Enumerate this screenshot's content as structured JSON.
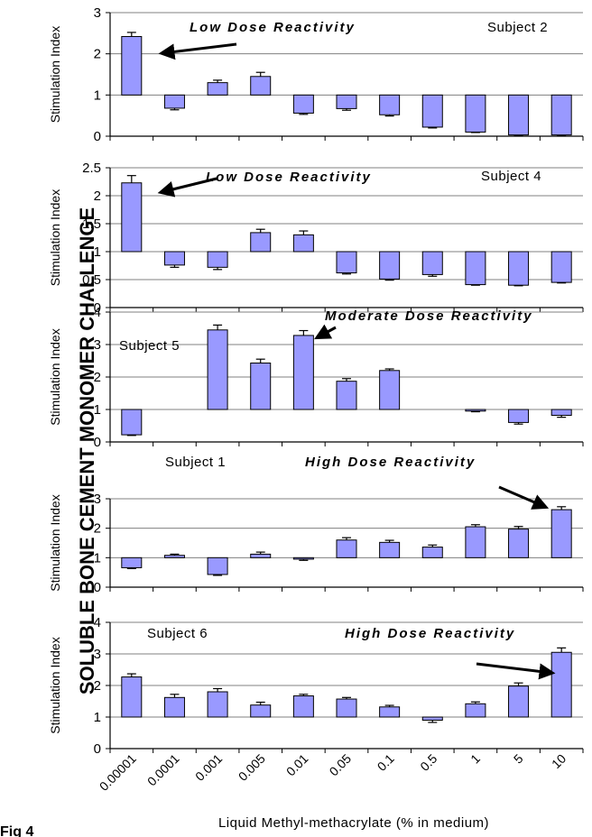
{
  "figure": {
    "title": "SOLUBLE BONE CEMENT MONOMER CHALLENGE",
    "xlabel": "Liquid Methyl-methacrylate (% in medium)",
    "fig_label": "Fig 4"
  },
  "chart_data": [
    {
      "type": "bar",
      "subject": "Subject 2",
      "annotation": "Low Dose Reactivity",
      "ylabel": "Stimulation Index",
      "baseline": 1,
      "ylim": [
        0,
        3
      ],
      "yticks": [
        "0",
        "1",
        "2",
        "3"
      ],
      "ytick_values": [
        0,
        1,
        2,
        3
      ],
      "values": [
        2.42,
        0.68,
        1.3,
        1.45,
        0.56,
        0.67,
        0.52,
        0.22,
        0.1,
        0.03,
        0.03
      ],
      "errors": [
        0.1,
        0.04,
        0.06,
        0.1,
        0.03,
        0.04,
        0.03,
        0.02,
        0.01,
        0.01,
        0.01
      ]
    },
    {
      "type": "bar",
      "subject": "Subject 4",
      "annotation": "Low Dose Reactivity",
      "ylabel": "Stimulation Index",
      "baseline": 1,
      "ylim": [
        0,
        2.5
      ],
      "yticks": [
        "0",
        "0.5",
        "1",
        "1.5",
        "2",
        "2.5"
      ],
      "ytick_values": [
        0,
        0.5,
        1,
        1.5,
        2,
        2.5
      ],
      "values": [
        2.23,
        0.76,
        0.72,
        1.34,
        1.3,
        0.62,
        0.51,
        0.59,
        0.41,
        0.4,
        0.45
      ],
      "errors": [
        0.13,
        0.04,
        0.04,
        0.06,
        0.07,
        0.02,
        0.02,
        0.03,
        0.01,
        0.01,
        0.01
      ]
    },
    {
      "type": "bar",
      "subject": "Subject 5",
      "annotation": "Moderate Dose Reactivity",
      "ylabel": "Stimulation Index",
      "baseline": 1,
      "ylim": [
        0,
        4
      ],
      "yticks": [
        "0",
        "1",
        "2",
        "3",
        "4"
      ],
      "ytick_values": [
        0,
        1,
        2,
        3,
        4
      ],
      "values": [
        0.22,
        null,
        3.45,
        2.43,
        3.28,
        1.87,
        2.2,
        null,
        0.95,
        0.6,
        0.82
      ],
      "errors": [
        0.02,
        0,
        0.15,
        0.12,
        0.15,
        0.08,
        0.05,
        0,
        0.02,
        0.05,
        0.06
      ]
    },
    {
      "type": "bar",
      "subject": "Subject 1",
      "annotation": "High Dose Reactivity",
      "ylabel": "Stimulation Index",
      "baseline": 1,
      "ylim": [
        0,
        3
      ],
      "yticks": [
        "0",
        "1",
        "2",
        "3"
      ],
      "ytick_values": [
        0,
        1,
        2,
        3
      ],
      "values": [
        0.66,
        1.08,
        0.43,
        1.12,
        0.95,
        1.6,
        1.52,
        1.36,
        2.05,
        1.97,
        2.63
      ],
      "errors": [
        0.03,
        0.04,
        0.03,
        0.07,
        0.04,
        0.08,
        0.07,
        0.07,
        0.07,
        0.09,
        0.1
      ]
    },
    {
      "type": "bar",
      "subject": "Subject 6",
      "annotation": "High Dose Reactivity",
      "ylabel": "Stimulation Index",
      "baseline": 1,
      "ylim": [
        0,
        4
      ],
      "yticks": [
        "0",
        "1",
        "2",
        "3",
        "4"
      ],
      "ytick_values": [
        0,
        1,
        2,
        3,
        4
      ],
      "values": [
        2.27,
        1.62,
        1.8,
        1.38,
        1.67,
        1.57,
        1.32,
        0.9,
        1.42,
        1.98,
        3.05
      ],
      "errors": [
        0.1,
        0.1,
        0.1,
        0.09,
        0.05,
        0.05,
        0.05,
        0.07,
        0.06,
        0.1,
        0.14
      ]
    }
  ],
  "categories": [
    "0.00001",
    "0.0001",
    "0.001",
    "0.005",
    "0.01",
    "0.05",
    "0.1",
    "0.5",
    "1",
    "5",
    "10"
  ]
}
